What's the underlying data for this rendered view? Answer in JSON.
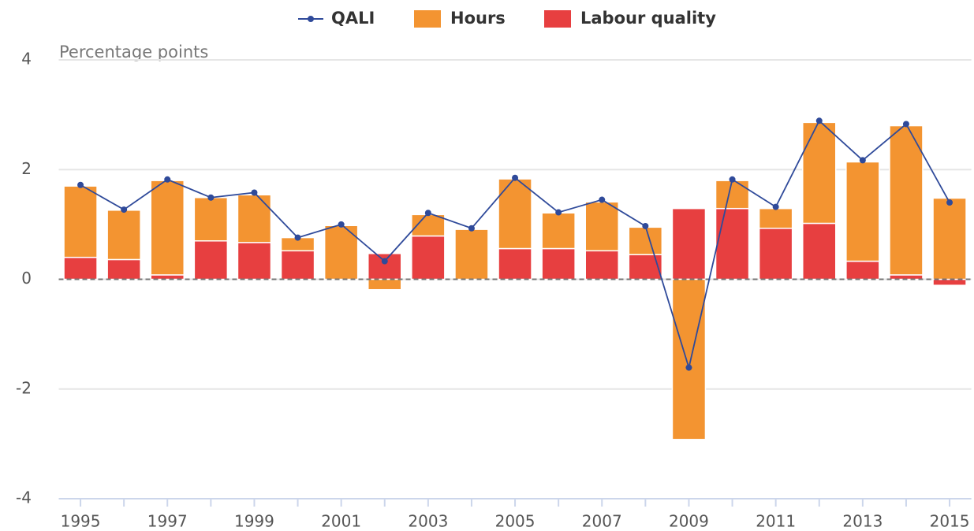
{
  "chart_data": {
    "type": "bar",
    "y_label": "Percentage points",
    "categories": [
      "1995",
      null,
      "1997",
      null,
      "1999",
      null,
      "2001",
      null,
      "2003",
      null,
      "2005",
      null,
      "2007",
      null,
      "2009",
      null,
      "2011",
      null,
      "2013",
      null,
      "2015"
    ],
    "series": [
      {
        "name": "QALI",
        "type": "line",
        "color": "#2f4a9a",
        "values": [
          1.72,
          1.27,
          1.82,
          1.49,
          1.58,
          0.76,
          1.0,
          0.33,
          1.21,
          0.93,
          1.85,
          1.22,
          1.45,
          0.97,
          -1.61,
          1.82,
          1.32,
          2.89,
          2.17,
          2.83,
          1.4
        ]
      },
      {
        "name": "Hours",
        "type": "bar",
        "color": "#f39431",
        "values": [
          1.3,
          0.9,
          1.72,
          0.79,
          0.87,
          0.24,
          0.98,
          -0.19,
          0.39,
          0.91,
          1.27,
          0.65,
          0.89,
          0.5,
          -2.92,
          0.51,
          0.36,
          1.84,
          1.81,
          2.72,
          1.48
        ]
      },
      {
        "name": "Labour quality",
        "type": "bar",
        "color": "#e73f40",
        "values": [
          0.4,
          0.36,
          0.08,
          0.7,
          0.67,
          0.52,
          0,
          0.47,
          0.79,
          0,
          0.56,
          0.56,
          0.52,
          0.45,
          1.29,
          1.29,
          0.93,
          1.02,
          0.33,
          0.08,
          -0.11
        ]
      }
    ],
    "ylim": [
      -4,
      4
    ],
    "yticks": [
      -4,
      -2,
      0,
      2,
      4
    ],
    "grid": true,
    "legend": "top"
  }
}
